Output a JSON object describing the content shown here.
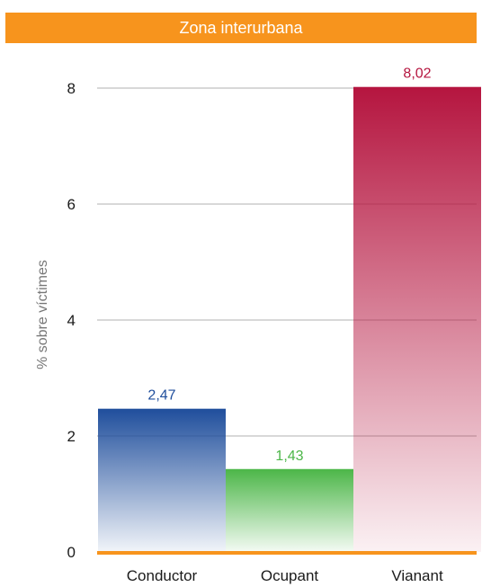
{
  "chart_data": {
    "type": "bar",
    "title": "Zona interurbana",
    "ylabel": "% sobre víctimes",
    "xlabel": "",
    "categories": [
      "Conductor",
      "Ocupant",
      "Vianant"
    ],
    "values": [
      2.47,
      1.43,
      8.02
    ],
    "value_labels": [
      "2,47",
      "1,43",
      "8,02"
    ],
    "yticks": [
      0,
      2,
      4,
      6,
      8
    ],
    "ylim": [
      0,
      8.6
    ],
    "grid": true,
    "colors": {
      "banner": "#f7941d",
      "baseline": "#f7941d",
      "gridline": "#cccccc",
      "bars": [
        "#1f4e9c",
        "#4cb648",
        "#b5153f"
      ]
    }
  }
}
